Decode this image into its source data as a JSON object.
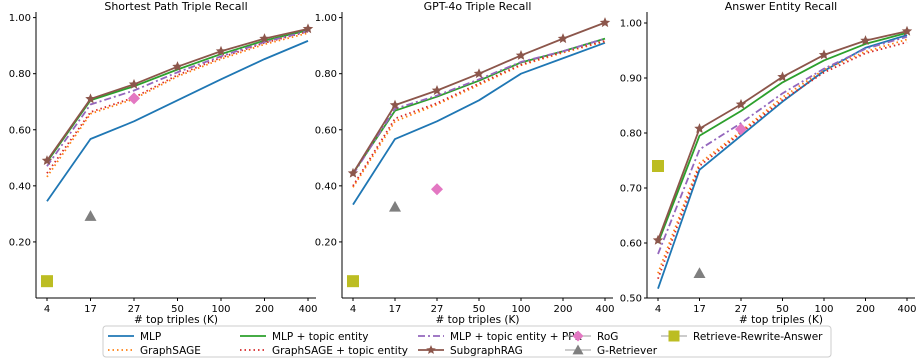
{
  "chart_data": [
    {
      "type": "line",
      "title": "Shortest Path Triple Recall",
      "xlabel": "# top triples (K)",
      "ylabel": "",
      "categories": [
        "4",
        "17",
        "27",
        "50",
        "100",
        "200",
        "400"
      ],
      "ylim": [
        0.0,
        1.02
      ],
      "yticks": [
        0.2,
        0.4,
        0.6,
        0.8,
        1.0
      ],
      "ytick_labels": [
        "0.20",
        "0.40",
        "0.60",
        "0.80",
        "1.00"
      ],
      "series": [
        {
          "name": "MLP",
          "values": [
            0.345,
            0.567,
            0.63,
            0.705,
            0.78,
            0.852,
            0.917
          ]
        },
        {
          "name": "GraphSAGE",
          "values": [
            0.432,
            0.657,
            0.71,
            0.79,
            0.852,
            0.905,
            0.945
          ]
        },
        {
          "name": "MLP + topic entity",
          "values": [
            0.485,
            0.705,
            0.755,
            0.815,
            0.87,
            0.918,
            0.955
          ]
        },
        {
          "name": "GraphSAGE + topic entity",
          "values": [
            0.445,
            0.663,
            0.715,
            0.795,
            0.857,
            0.91,
            0.95
          ]
        },
        {
          "name": "MLP + topic entity + PPR",
          "values": [
            0.47,
            0.69,
            0.74,
            0.805,
            0.862,
            0.913,
            0.952
          ]
        },
        {
          "name": "SubgraphRAG",
          "values": [
            0.49,
            0.71,
            0.762,
            0.825,
            0.88,
            0.925,
            0.96
          ]
        }
      ],
      "points": [
        {
          "name": "RoG",
          "x": "27",
          "y": 0.712
        },
        {
          "name": "G-Retriever",
          "x": "17",
          "y": 0.292
        },
        {
          "name": "Retrieve-Rewrite-Answer",
          "x": "4",
          "y": 0.06
        }
      ]
    },
    {
      "type": "line",
      "title": "GPT-4o Triple Recall",
      "xlabel": "# top triples (K)",
      "ylabel": "",
      "categories": [
        "4",
        "17",
        "27",
        "50",
        "100",
        "200",
        "400"
      ],
      "ylim": [
        0.0,
        1.02
      ],
      "yticks": [
        0.2,
        0.4,
        0.6,
        0.8,
        1.0
      ],
      "ytick_labels": [
        "0.20",
        "0.40",
        "0.60",
        "0.80",
        "1.00"
      ],
      "series": [
        {
          "name": "MLP",
          "values": [
            0.333,
            0.567,
            0.63,
            0.705,
            0.8,
            0.855,
            0.91
          ]
        },
        {
          "name": "GraphSAGE",
          "values": [
            0.395,
            0.63,
            0.69,
            0.76,
            0.83,
            0.875,
            0.915
          ]
        },
        {
          "name": "MLP + topic entity",
          "values": [
            0.445,
            0.668,
            0.718,
            0.775,
            0.84,
            0.88,
            0.925
          ]
        },
        {
          "name": "GraphSAGE + topic entity",
          "values": [
            0.4,
            0.64,
            0.695,
            0.765,
            0.832,
            0.878,
            0.917
          ]
        },
        {
          "name": "MLP + topic entity + PPR",
          "values": [
            0.44,
            0.675,
            0.722,
            0.78,
            0.842,
            0.88,
            0.925
          ]
        },
        {
          "name": "SubgraphRAG",
          "values": [
            0.445,
            0.688,
            0.74,
            0.8,
            0.865,
            0.925,
            0.982
          ]
        }
      ],
      "points": [
        {
          "name": "RoG",
          "x": "27",
          "y": 0.388
        },
        {
          "name": "G-Retriever",
          "x": "17",
          "y": 0.325
        },
        {
          "name": "Retrieve-Rewrite-Answer",
          "x": "4",
          "y": 0.06
        }
      ]
    },
    {
      "type": "line",
      "title": "Answer Entity Recall",
      "xlabel": "# top triples (K)",
      "ylabel": "",
      "categories": [
        "4",
        "17",
        "27",
        "50",
        "100",
        "200",
        "400"
      ],
      "ylim": [
        0.5,
        1.02
      ],
      "yticks": [
        0.5,
        0.6,
        0.7,
        0.8,
        0.9,
        1.0
      ],
      "ytick_labels": [
        "0.50",
        "0.60",
        "0.70",
        "0.80",
        "0.90",
        "1.00"
      ],
      "series": [
        {
          "name": "MLP",
          "values": [
            0.517,
            0.733,
            0.795,
            0.857,
            0.913,
            0.955,
            0.978
          ]
        },
        {
          "name": "GraphSAGE",
          "values": [
            0.545,
            0.745,
            0.803,
            0.865,
            0.915,
            0.948,
            0.97
          ]
        },
        {
          "name": "MLP + topic entity",
          "values": [
            0.6,
            0.795,
            0.84,
            0.892,
            0.932,
            0.962,
            0.982
          ]
        },
        {
          "name": "GraphSAGE + topic entity",
          "values": [
            0.535,
            0.74,
            0.8,
            0.86,
            0.91,
            0.945,
            0.965
          ]
        },
        {
          "name": "MLP + topic entity + PPR",
          "values": [
            0.58,
            0.77,
            0.818,
            0.872,
            0.917,
            0.953,
            0.975
          ]
        },
        {
          "name": "SubgraphRAG",
          "values": [
            0.605,
            0.808,
            0.852,
            0.902,
            0.942,
            0.968,
            0.985
          ]
        }
      ],
      "points": [
        {
          "name": "RoG",
          "x": "27",
          "y": 0.807
        },
        {
          "name": "G-Retriever",
          "x": "17",
          "y": 0.545
        },
        {
          "name": "Retrieve-Rewrite-Answer",
          "x": "4",
          "y": 0.74
        }
      ]
    }
  ],
  "legend": {
    "placement": "bottom-center",
    "items": [
      {
        "label": "MLP",
        "style": "solid",
        "color": "#1f77b4"
      },
      {
        "label": "GraphSAGE",
        "style": "dotted",
        "color": "#ff7f0e"
      },
      {
        "label": "MLP + topic entity",
        "style": "solid",
        "color": "#2ca02c"
      },
      {
        "label": "GraphSAGE + topic entity",
        "style": "dotted",
        "color": "#d62728"
      },
      {
        "label": "MLP + topic entity + PPR",
        "style": "dashdot",
        "color": "#9467bd"
      },
      {
        "label": "SubgraphRAG",
        "style": "solid-star",
        "color": "#8c564b"
      },
      {
        "label": "RoG",
        "style": "diamond",
        "color": "#e377c2"
      },
      {
        "label": "G-Retriever",
        "style": "triangle",
        "color": "#7f7f7f"
      },
      {
        "label": "Retrieve-Rewrite-Answer",
        "style": "square",
        "color": "#bcbd22"
      }
    ]
  }
}
